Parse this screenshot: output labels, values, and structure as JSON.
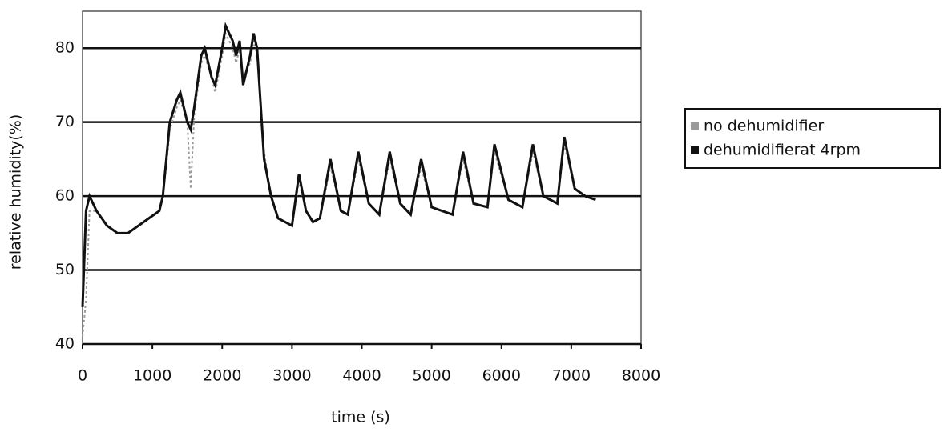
{
  "chart_data": {
    "type": "line",
    "x_label": "time (s)",
    "y_label": "relative humidity(%)",
    "x": [
      0,
      50,
      100,
      200,
      350,
      500,
      650,
      800,
      950,
      1100,
      1150,
      1200,
      1250,
      1350,
      1400,
      1500,
      1550,
      1600,
      1700,
      1750,
      1850,
      1900,
      2000,
      2050,
      2150,
      2200,
      2250,
      2300,
      2400,
      2450,
      2500,
      2600,
      2700,
      2800,
      2900,
      3000,
      3100,
      3200,
      3300,
      3400,
      3550,
      3700,
      3800,
      3950,
      4100,
      4250,
      4400,
      4550,
      4700,
      4850,
      5000,
      5300,
      5450,
      5600,
      5800,
      5900,
      6100,
      6300,
      6450,
      6600,
      6800,
      6900,
      7050,
      7200,
      7350
    ],
    "series": [
      {
        "name": "no dehumidifier",
        "color": "#9a9a9a",
        "values": [
          41,
          46,
          58,
          58,
          56,
          55,
          55,
          56,
          57,
          58,
          60,
          64,
          69,
          72,
          73,
          70,
          61,
          71,
          78,
          79,
          76,
          74,
          79,
          82,
          80,
          78,
          80,
          76,
          78,
          81,
          79,
          66,
          60,
          57,
          56.5,
          56,
          62,
          58,
          56.5,
          57,
          64,
          58,
          57.5,
          65,
          59,
          57.5,
          65,
          59,
          57.5,
          64,
          58.5,
          57.5,
          65,
          59,
          58.5,
          66,
          59.5,
          58.5,
          66,
          60,
          59,
          67,
          61,
          60,
          59.5
        ]
      },
      {
        "name": "dehumidifierat 4rpm",
        "color": "#111111",
        "values": [
          45,
          58,
          60,
          58,
          56,
          55,
          55,
          56,
          57,
          58,
          60,
          65,
          70,
          73,
          74,
          70,
          69,
          72,
          79,
          80,
          76,
          75,
          80,
          83,
          81,
          79,
          81,
          75,
          79,
          82,
          80,
          65,
          60,
          57,
          56.5,
          56,
          63,
          58,
          56.5,
          57,
          65,
          58,
          57.5,
          66,
          59,
          57.5,
          66,
          59,
          57.5,
          65,
          58.5,
          57.5,
          66,
          59,
          58.5,
          67,
          59.5,
          58.5,
          67,
          60,
          59,
          68,
          61,
          60,
          59.5
        ]
      }
    ],
    "xlim": [
      0,
      8000
    ],
    "xticks": [
      0,
      1000,
      2000,
      3000,
      4000,
      5000,
      6000,
      7000,
      8000
    ],
    "ylim": [
      40,
      85
    ],
    "yticks": [
      40,
      50,
      60,
      70,
      80
    ],
    "grid": true,
    "legend": "right"
  }
}
